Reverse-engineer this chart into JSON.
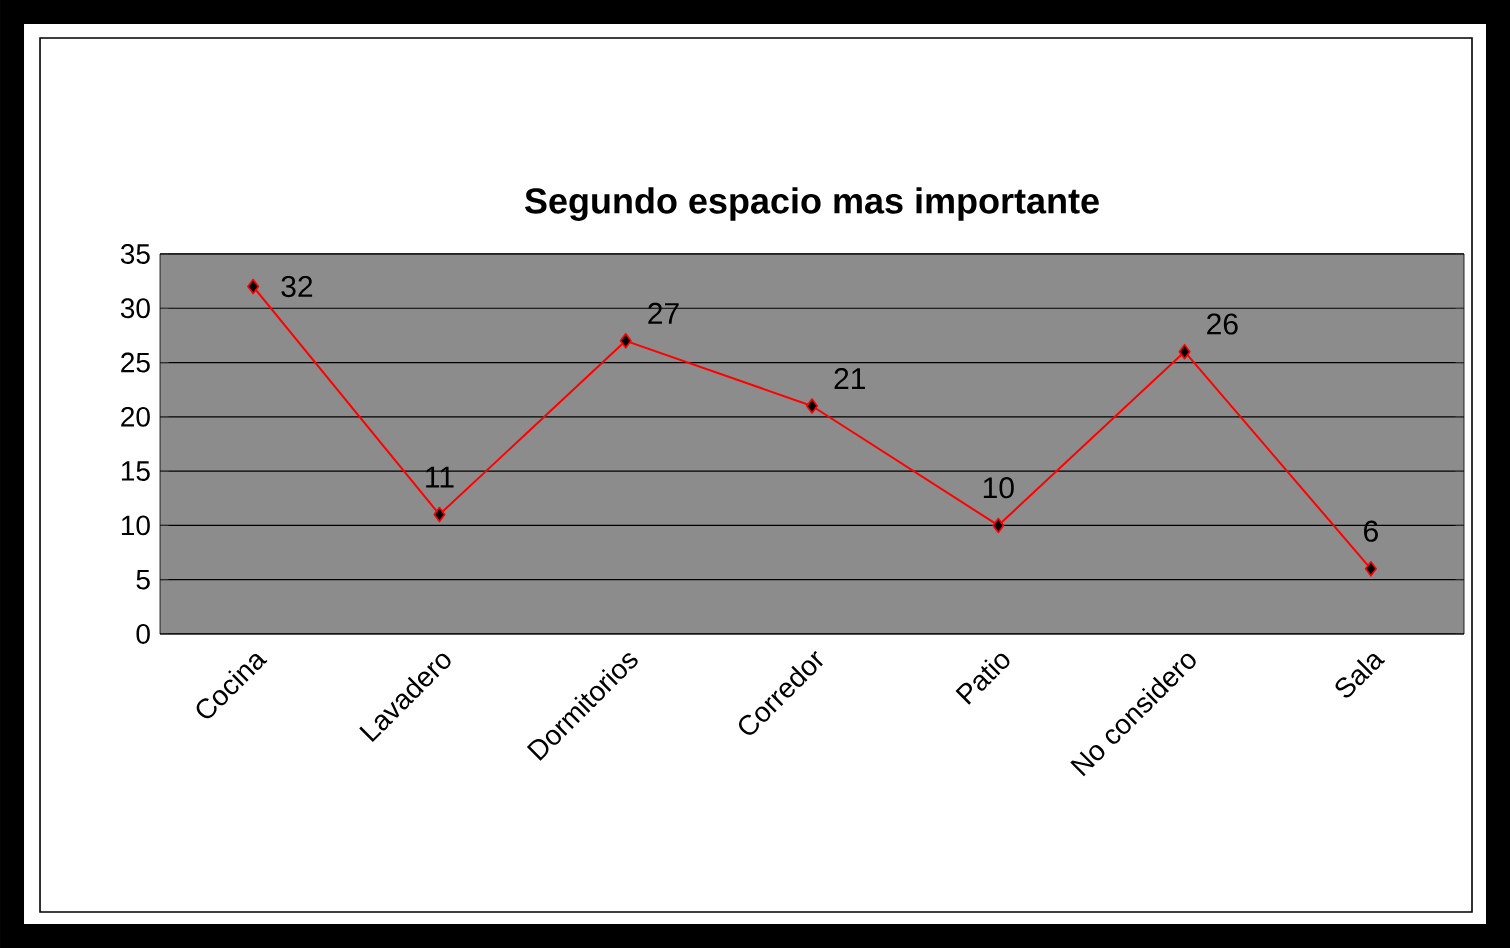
{
  "chart_data": {
    "type": "line",
    "title": "Segundo espacio mas importante",
    "categories": [
      "Cocina",
      "Lavadero",
      "Dormitorios",
      "Corredor",
      "Patio",
      "No considero",
      "Sala"
    ],
    "values": [
      32,
      11,
      27,
      21,
      10,
      26,
      6
    ],
    "color": "#ff0000",
    "ylim": [
      0,
      35
    ],
    "yticks": [
      0,
      5,
      10,
      15,
      20,
      25,
      30,
      35
    ],
    "grid": "y",
    "marker": "diamond",
    "data_labels": true
  }
}
